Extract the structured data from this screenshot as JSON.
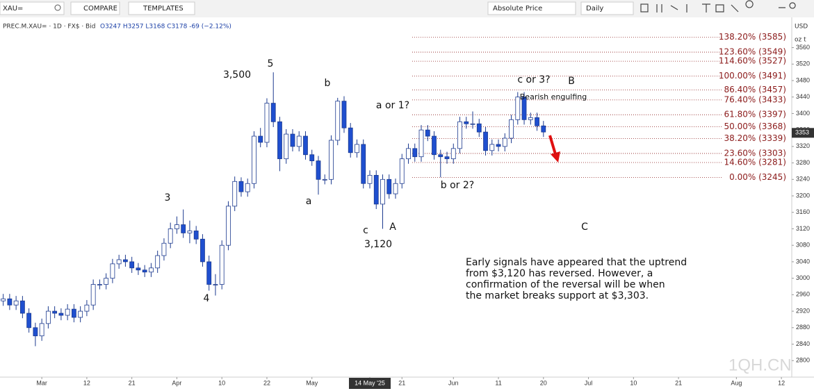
{
  "toolbar": {
    "symbol": "XAU=",
    "compare": "COMPARE",
    "templates": "TEMPLATES",
    "price_mode": "Absolute Price",
    "interval": "Daily",
    "currency": "USD",
    "unit": "oz t"
  },
  "watermark": "1QH.CN",
  "chart_data": {
    "type": "candlestick",
    "instrument": "PREC.M.XAU= · 1D · FX$ · Bid",
    "ohlc_summary": "O3247 H3257 L3168 C3178 -69 (−2.12%)",
    "up_color": "#ffffff",
    "down_color": "#1f4fcf",
    "edge_color": "#1c3a8f",
    "open": [
      2945,
      2950,
      2935,
      2945,
      2915,
      2880,
      2860,
      2890,
      2920,
      2915,
      2910,
      2925,
      2905,
      2920,
      2935,
      2985,
      2985,
      3000,
      3035,
      3045,
      3040,
      3025,
      3020,
      3015,
      3025,
      3055,
      3085,
      3120,
      3130,
      3110,
      3115,
      3095,
      3040,
      2985,
      2985,
      3080,
      3175,
      3235,
      3210,
      3230,
      3345,
      3330,
      3425,
      3380,
      3290,
      3350,
      3320,
      3345,
      3300,
      3285,
      3240,
      3240,
      3335,
      3430,
      3365,
      3305,
      3325,
      3230,
      3250,
      3180,
      3240,
      3205,
      3230,
      3290,
      3315,
      3295,
      3360,
      3345,
      3300,
      3295,
      3290,
      3315,
      3380,
      3375,
      3375,
      3355,
      3310,
      3325,
      3320,
      3340,
      3385,
      3440,
      3385,
      3390,
      3370
    ],
    "high": [
      2962,
      2962,
      2957,
      2957,
      2927,
      2892,
      2902,
      2932,
      2932,
      2927,
      2937,
      2937,
      2932,
      2947,
      2997,
      2997,
      3012,
      3047,
      3057,
      3057,
      3052,
      3037,
      3032,
      3037,
      3067,
      3097,
      3135,
      3150,
      3167,
      3140,
      3127,
      3107,
      3055,
      3010,
      3092,
      3187,
      3247,
      3245,
      3242,
      3357,
      3365,
      3437,
      3500,
      3392,
      3362,
      3362,
      3357,
      3357,
      3312,
      3297,
      3252,
      3347,
      3438,
      3442,
      3377,
      3337,
      3337,
      3262,
      3262,
      3252,
      3252,
      3242,
      3302,
      3327,
      3327,
      3372,
      3372,
      3357,
      3312,
      3307,
      3327,
      3392,
      3392,
      3405,
      3387,
      3367,
      3337,
      3337,
      3352,
      3397,
      3452,
      3452,
      3402,
      3402,
      3382
    ],
    "low": [
      2933,
      2923,
      2923,
      2903,
      2868,
      2835,
      2848,
      2878,
      2903,
      2898,
      2898,
      2893,
      2893,
      2908,
      2923,
      2973,
      2973,
      2988,
      3023,
      3028,
      3013,
      3008,
      3003,
      3003,
      3013,
      3043,
      3073,
      3108,
      3098,
      3085,
      3083,
      3028,
      2970,
      2958,
      2973,
      3068,
      3163,
      3198,
      3198,
      3218,
      3318,
      3318,
      3367,
      3260,
      3278,
      3308,
      3308,
      3288,
      3273,
      3203,
      3228,
      3228,
      3323,
      3353,
      3293,
      3293,
      3218,
      3218,
      3168,
      3120,
      3193,
      3193,
      3218,
      3278,
      3283,
      3283,
      3333,
      3288,
      3245,
      3278,
      3278,
      3303,
      3363,
      3363,
      3343,
      3298,
      3298,
      3308,
      3308,
      3328,
      3373,
      3373,
      3373,
      3358,
      3343
    ],
    "close": [
      2950,
      2935,
      2945,
      2915,
      2880,
      2860,
      2890,
      2920,
      2915,
      2910,
      2925,
      2905,
      2920,
      2935,
      2985,
      2985,
      3000,
      3035,
      3045,
      3040,
      3025,
      3020,
      3015,
      3025,
      3055,
      3085,
      3120,
      3130,
      3110,
      3115,
      3095,
      3040,
      2985,
      2985,
      3080,
      3175,
      3235,
      3210,
      3230,
      3345,
      3330,
      3425,
      3380,
      3290,
      3350,
      3320,
      3345,
      3300,
      3285,
      3240,
      3240,
      3335,
      3430,
      3365,
      3305,
      3325,
      3230,
      3250,
      3180,
      3240,
      3205,
      3230,
      3290,
      3315,
      3295,
      3360,
      3345,
      3300,
      3295,
      3290,
      3315,
      3380,
      3375,
      3375,
      3355,
      3310,
      3325,
      3320,
      3340,
      3385,
      3440,
      3385,
      3390,
      3370,
      3355
    ],
    "xlim": [
      -0.5,
      122.5
    ],
    "xticks": [
      {
        "value": 6,
        "label": "Mar"
      },
      {
        "value": 13,
        "label": "12"
      },
      {
        "value": 20,
        "label": "21"
      },
      {
        "value": 27,
        "label": "Apr"
      },
      {
        "value": 34,
        "label": "10"
      },
      {
        "value": 41,
        "label": "22"
      },
      {
        "value": 48,
        "label": "May"
      },
      {
        "value": 57,
        "label": "14 May '25"
      },
      {
        "value": 62,
        "label": "21"
      },
      {
        "value": 70,
        "label": "Jun"
      },
      {
        "value": 77,
        "label": "11"
      },
      {
        "value": 84,
        "label": "20"
      },
      {
        "value": 91,
        "label": "Jul"
      },
      {
        "value": 98,
        "label": "10"
      },
      {
        "value": 105,
        "label": "21"
      },
      {
        "value": 114,
        "label": "Aug"
      },
      {
        "value": 121,
        "label": "12"
      }
    ],
    "ylim": [
      2765,
      3625
    ],
    "yticks": [
      2800,
      2840,
      2880,
      2920,
      2960,
      3000,
      3040,
      3080,
      3120,
      3160,
      3200,
      3240,
      3280,
      3320,
      3360,
      3400,
      3440,
      3480,
      3520,
      3560
    ],
    "last_price": 3353,
    "fib_levels": [
      {
        "label": "138.20% (3585)",
        "value": 3585
      },
      {
        "label": "123.60% (3549)",
        "value": 3549
      },
      {
        "label": "114.60% (3527)",
        "value": 3527
      },
      {
        "label": "100.00% (3491)",
        "value": 3491
      },
      {
        "label": "86.40% (3457)",
        "value": 3457
      },
      {
        "label": "76.40% (3433)",
        "value": 3433
      },
      {
        "label": "61.80% (3397)",
        "value": 3397
      },
      {
        "label": "50.00% (3368)",
        "value": 3368
      },
      {
        "label": "38.20% (3339)",
        "value": 3339
      },
      {
        "label": "23.60% (3303)",
        "value": 3303
      },
      {
        "label": "14.60% (3281)",
        "value": 3281
      },
      {
        "label": "0.00% (3245)",
        "value": 3245
      }
    ],
    "annotations": [
      "3,500",
      "5",
      "b",
      "a or 1?",
      "c or 3?",
      "B",
      "Bearish engulfing",
      "3",
      "a",
      "c",
      "A",
      "3,120",
      "b or 2?",
      "C",
      "4"
    ],
    "note": [
      "Early signals have appeared that the uptrend",
      "from $3,120 has reversed. However, a",
      "confirmation of the reversal will be when",
      "the market breaks support at $3,303."
    ]
  }
}
